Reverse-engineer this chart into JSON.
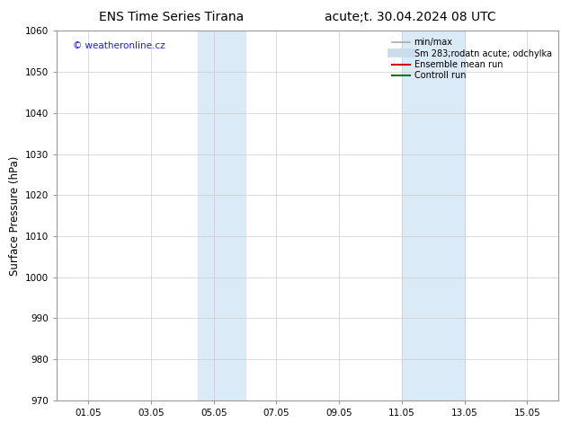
{
  "title_left": "ENS Time Series Tirana",
  "title_right": "acute;t. 30.04.2024 08 UTC",
  "ylabel": "Surface Pressure (hPa)",
  "ylim": [
    970,
    1060
  ],
  "yticks": [
    970,
    980,
    990,
    1000,
    1010,
    1020,
    1030,
    1040,
    1050,
    1060
  ],
  "xtick_labels": [
    "01.05",
    "03.05",
    "05.05",
    "07.05",
    "09.05",
    "11.05",
    "13.05",
    "15.05"
  ],
  "xtick_positions": [
    1,
    3,
    5,
    7,
    9,
    11,
    13,
    15
  ],
  "xlim": [
    0,
    16
  ],
  "shaded_regions": [
    {
      "x_start": 4.5,
      "x_end": 6.0,
      "color": "#daeaf7",
      "alpha": 1.0
    },
    {
      "x_start": 11.0,
      "x_end": 13.0,
      "color": "#daeaf7",
      "alpha": 1.0
    }
  ],
  "watermark_text": "© weatheronline.cz",
  "watermark_color": "#1a1aff",
  "legend_items": [
    {
      "label": "min/max",
      "color": "#aaaaaa",
      "lw": 1.2,
      "style": "solid"
    },
    {
      "label": "Sm 283;rodatn acute; odchylka",
      "color": "#c8dcea",
      "lw": 7,
      "style": "solid"
    },
    {
      "label": "Ensemble mean run",
      "color": "#cc0000",
      "lw": 1.5,
      "style": "solid"
    },
    {
      "label": "Controll run",
      "color": "#007700",
      "lw": 1.5,
      "style": "solid"
    }
  ],
  "bg_color": "#ffffff",
  "plot_bg_color": "#ffffff",
  "grid_color": "#cccccc",
  "tick_fontsize": 7.5,
  "label_fontsize": 8.5,
  "title_fontsize": 10,
  "legend_fontsize": 7
}
